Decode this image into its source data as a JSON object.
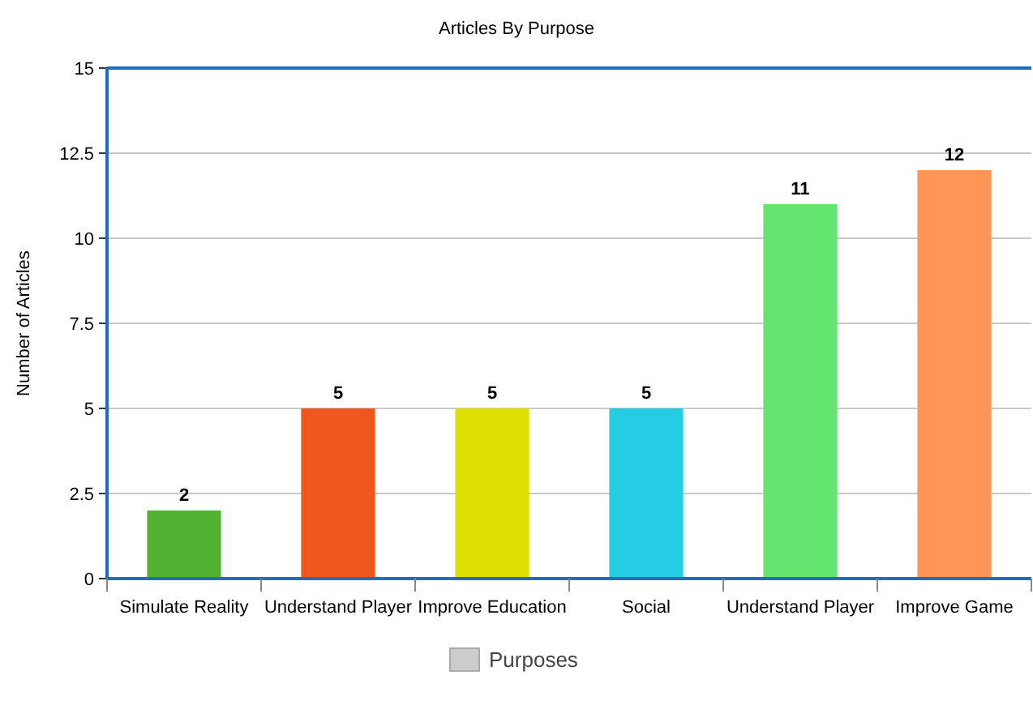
{
  "chart_data": {
    "type": "bar",
    "title": "Articles By Purpose",
    "ylabel": "Number of Articles",
    "categories": [
      "Simulate Reality",
      "Understand Player",
      "Improve Education",
      "Social",
      "Understand Player",
      "Improve Game"
    ],
    "series": [
      {
        "name": "Purposes",
        "values": [
          2,
          5,
          5,
          5,
          11,
          12
        ]
      }
    ],
    "colors": [
      "#52b232",
      "#ef571f",
      "#dde000",
      "#24cde4",
      "#63e56f",
      "#ff9657"
    ],
    "ylim": [
      0,
      15
    ],
    "yticks": [
      0,
      2.5,
      5,
      7.5,
      10,
      12.5,
      15
    ],
    "grid": "y",
    "data_labels": true,
    "legend": "bottom"
  }
}
